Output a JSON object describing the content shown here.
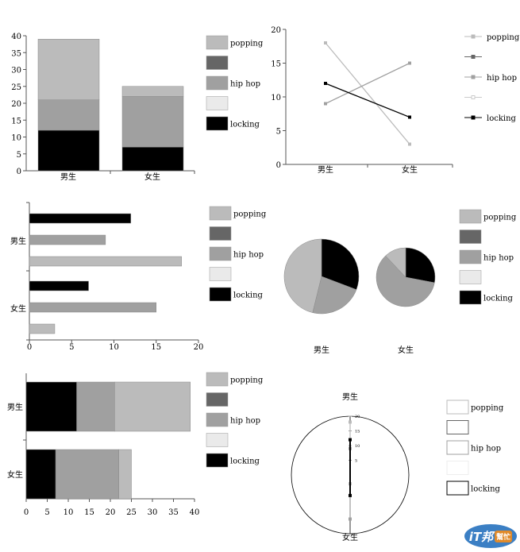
{
  "legend_labels": [
    "popping",
    "",
    "hip hop",
    "",
    "locking"
  ],
  "colors": {
    "popping": "#bbbbbb",
    "dark": "#666666",
    "hiphop": "#a0a0a0",
    "light": "#eaeaea",
    "locking": "#000000"
  },
  "logo": {
    "text": "iT邦",
    "badge": "幫忙"
  },
  "chart_data": [
    {
      "type": "bar",
      "stacked": true,
      "orientation": "vertical",
      "categories": [
        "男生",
        "女生"
      ],
      "series": [
        {
          "name": "locking",
          "values": [
            12,
            7
          ]
        },
        {
          "name": "hip hop",
          "values": [
            9,
            15
          ]
        },
        {
          "name": "popping",
          "values": [
            18,
            3
          ]
        }
      ],
      "ylim": [
        0,
        40
      ],
      "yticks": [
        0,
        5,
        10,
        15,
        20,
        25,
        30,
        35,
        40
      ],
      "legend": "right"
    },
    {
      "type": "line",
      "categories": [
        "男生",
        "女生"
      ],
      "series": [
        {
          "name": "popping",
          "values": [
            18,
            3
          ]
        },
        {
          "name": "hip hop",
          "values": [
            9,
            15
          ]
        },
        {
          "name": "locking",
          "values": [
            12,
            7
          ]
        }
      ],
      "ylim": [
        0,
        20
      ],
      "yticks": [
        0,
        5,
        10,
        15,
        20
      ],
      "legend": "right"
    },
    {
      "type": "bar",
      "stacked": false,
      "orientation": "horizontal",
      "categories": [
        "男生",
        "女生"
      ],
      "series": [
        {
          "name": "locking",
          "values": [
            12,
            7
          ]
        },
        {
          "name": "hip hop",
          "values": [
            9,
            15
          ]
        },
        {
          "name": "popping",
          "values": [
            18,
            3
          ]
        }
      ],
      "xlim": [
        0,
        20
      ],
      "xticks": [
        0,
        5,
        10,
        15,
        20
      ],
      "legend": "right"
    },
    {
      "type": "pie",
      "categories": [
        "男生",
        "女生"
      ],
      "series": [
        {
          "name": "locking",
          "values": [
            12,
            7
          ]
        },
        {
          "name": "hip hop",
          "values": [
            9,
            15
          ]
        },
        {
          "name": "popping",
          "values": [
            18,
            3
          ]
        }
      ],
      "legend": "right"
    },
    {
      "type": "bar",
      "stacked": true,
      "orientation": "horizontal",
      "categories": [
        "男生",
        "女生"
      ],
      "series": [
        {
          "name": "locking",
          "values": [
            12,
            7
          ]
        },
        {
          "name": "hip hop",
          "values": [
            9,
            15
          ]
        },
        {
          "name": "popping",
          "values": [
            18,
            3
          ]
        }
      ],
      "xlim": [
        0,
        40
      ],
      "xticks": [
        0,
        5,
        10,
        15,
        20,
        25,
        30,
        35,
        40
      ],
      "legend": "right"
    },
    {
      "type": "radar",
      "categories": [
        "男生",
        "女生"
      ],
      "series": [
        {
          "name": "popping",
          "values": [
            18,
            3
          ]
        },
        {
          "name": "hip hop",
          "values": [
            9,
            15
          ]
        },
        {
          "name": "locking",
          "values": [
            12,
            7
          ]
        }
      ],
      "ylim": [
        0,
        20
      ],
      "yticks": [
        5,
        10,
        15,
        20
      ],
      "legend": "right"
    }
  ]
}
